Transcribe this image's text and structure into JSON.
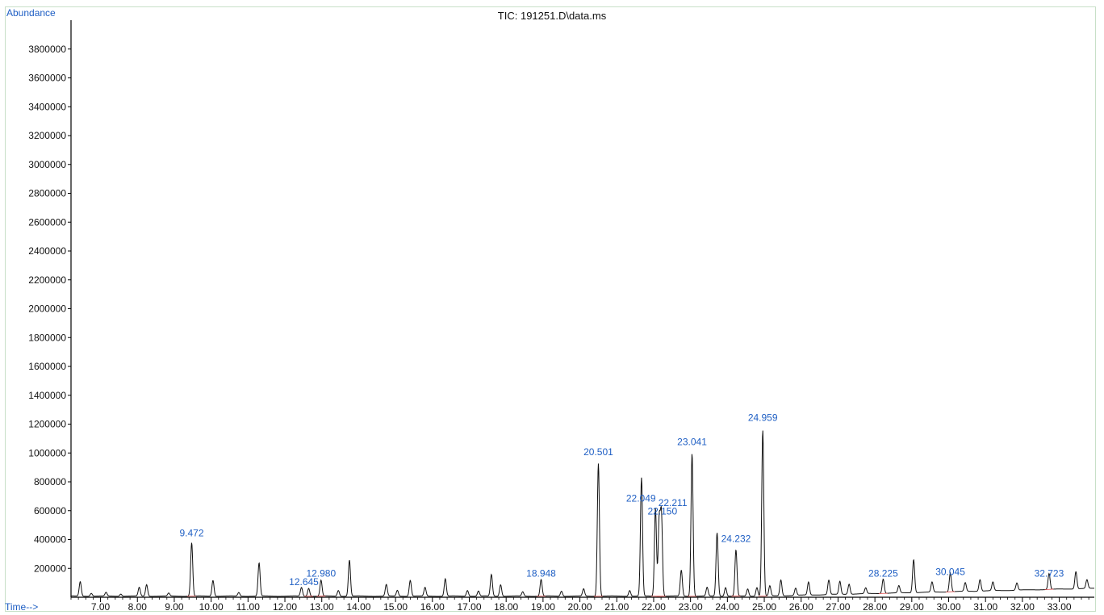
{
  "chart_data": {
    "type": "line",
    "title": "TIC: 191251.D\\data.ms",
    "ylabel": "Abundance",
    "xlabel": "Time-->",
    "ylim": [
      0,
      4000000
    ],
    "xlim": [
      6.2,
      33.95
    ],
    "yticks": [
      200000,
      400000,
      600000,
      800000,
      1000000,
      1200000,
      1400000,
      1600000,
      1800000,
      2000000,
      2200000,
      2400000,
      2600000,
      2800000,
      3000000,
      3200000,
      3400000,
      3600000,
      3800000
    ],
    "xticks": [
      "7.00",
      "8.00",
      "9.00",
      "10.00",
      "11.00",
      "12.00",
      "13.00",
      "14.00",
      "15.00",
      "16.00",
      "17.00",
      "18.00",
      "19.00",
      "20.00",
      "21.00",
      "22.00",
      "23.00",
      "24.00",
      "25.00",
      "26.00",
      "27.00",
      "28.00",
      "29.00",
      "30.00",
      "31.00",
      "32.00",
      "33.00"
    ],
    "peak_labels": [
      {
        "text": "9.472",
        "x": 9.472,
        "y": 390000
      },
      {
        "text": "12.645",
        "x": 12.645,
        "y": 50000
      },
      {
        "text": "12.980",
        "x": 12.98,
        "y": 110000
      },
      {
        "text": "18.948",
        "x": 18.948,
        "y": 110000
      },
      {
        "text": "20.501",
        "x": 20.501,
        "y": 950000
      },
      {
        "text": "22.049",
        "x": 22.049,
        "y": 630000
      },
      {
        "text": "22.211",
        "x": 22.211,
        "y": 600000
      },
      {
        "text": "22.150",
        "x": 22.15,
        "y": 540000
      },
      {
        "text": "23.041",
        "x": 23.041,
        "y": 1020000
      },
      {
        "text": "24.232",
        "x": 24.232,
        "y": 350000
      },
      {
        "text": "24.959",
        "x": 24.959,
        "y": 1190000
      },
      {
        "text": "28.225",
        "x": 28.225,
        "y": 110000
      },
      {
        "text": "30.045",
        "x": 30.045,
        "y": 120000
      },
      {
        "text": "32.723",
        "x": 32.723,
        "y": 110000
      }
    ],
    "peaks": [
      [
        6.45,
        100000
      ],
      [
        6.75,
        20000
      ],
      [
        7.15,
        25000
      ],
      [
        7.55,
        15000
      ],
      [
        8.05,
        60000
      ],
      [
        8.25,
        80000
      ],
      [
        8.85,
        20000
      ],
      [
        9.472,
        370000
      ],
      [
        10.05,
        110000
      ],
      [
        10.75,
        25000
      ],
      [
        11.3,
        230000
      ],
      [
        12.45,
        60000
      ],
      [
        12.645,
        55000
      ],
      [
        12.98,
        110000
      ],
      [
        13.45,
        40000
      ],
      [
        13.75,
        250000
      ],
      [
        14.75,
        80000
      ],
      [
        15.05,
        40000
      ],
      [
        15.4,
        110000
      ],
      [
        15.8,
        60000
      ],
      [
        16.35,
        120000
      ],
      [
        16.95,
        40000
      ],
      [
        17.25,
        35000
      ],
      [
        17.6,
        150000
      ],
      [
        17.85,
        80000
      ],
      [
        18.45,
        30000
      ],
      [
        18.948,
        115000
      ],
      [
        19.5,
        35000
      ],
      [
        20.1,
        50000
      ],
      [
        20.501,
        920000
      ],
      [
        21.35,
        40000
      ],
      [
        21.67,
        820000
      ],
      [
        22.049,
        610000
      ],
      [
        22.15,
        520000
      ],
      [
        22.211,
        560000
      ],
      [
        22.75,
        180000
      ],
      [
        23.041,
        990000
      ],
      [
        23.45,
        60000
      ],
      [
        23.72,
        440000
      ],
      [
        23.95,
        60000
      ],
      [
        24.232,
        320000
      ],
      [
        24.55,
        50000
      ],
      [
        24.8,
        60000
      ],
      [
        24.959,
        1150000
      ],
      [
        25.15,
        70000
      ],
      [
        25.45,
        110000
      ],
      [
        25.85,
        50000
      ],
      [
        26.2,
        90000
      ],
      [
        26.75,
        100000
      ],
      [
        27.05,
        90000
      ],
      [
        27.3,
        70000
      ],
      [
        27.75,
        40000
      ],
      [
        28.225,
        100000
      ],
      [
        28.65,
        50000
      ],
      [
        29.05,
        230000
      ],
      [
        29.55,
        70000
      ],
      [
        30.045,
        130000
      ],
      [
        30.45,
        60000
      ],
      [
        30.85,
        80000
      ],
      [
        31.2,
        60000
      ],
      [
        31.85,
        50000
      ],
      [
        32.723,
        110000
      ],
      [
        33.45,
        120000
      ],
      [
        33.75,
        60000
      ]
    ]
  }
}
